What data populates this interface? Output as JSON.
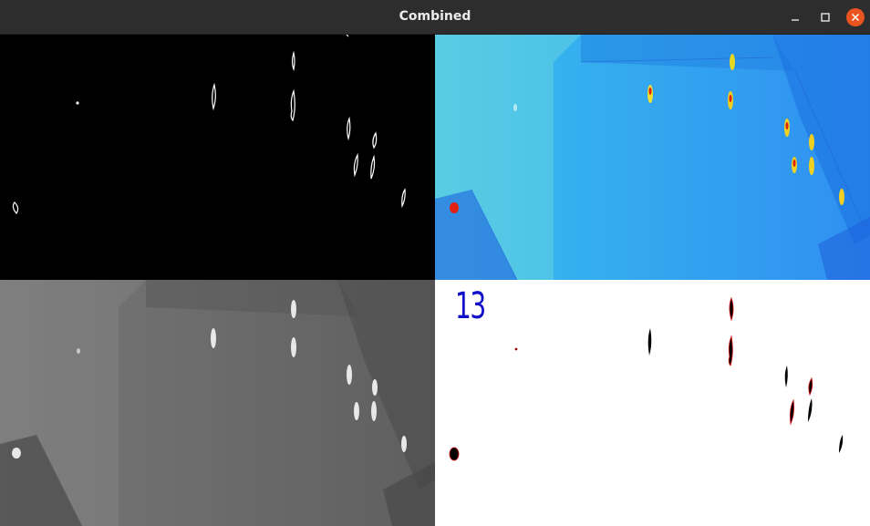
{
  "window": {
    "title": "Combined",
    "controls": [
      "minimize-icon",
      "maximize-icon",
      "close-icon"
    ],
    "close_color": "#e95420"
  },
  "panes": {
    "mask_outline": {
      "colors": {
        "background": "#000000",
        "contour": "#ffffff"
      }
    },
    "thermal_colormap": {
      "colors": {
        "background": "#2f9ff0",
        "hot": "#e02010",
        "warm": "#f0e020"
      }
    },
    "thermal_grayscale": {
      "colors": {
        "background": "#6e6e6e",
        "hot": "#f0f0f0"
      }
    },
    "detections": {
      "count_label": "13",
      "colors": {
        "background": "#ffffff",
        "blob": "#000000",
        "contour": "#d00000",
        "count_text": "#1010c8"
      }
    }
  }
}
